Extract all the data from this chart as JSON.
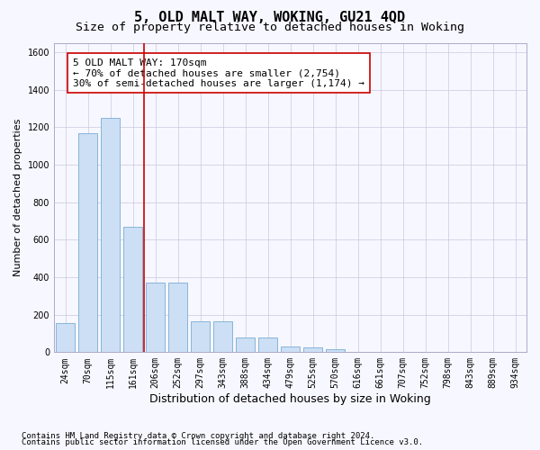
{
  "title1": "5, OLD MALT WAY, WOKING, GU21 4QD",
  "title2": "Size of property relative to detached houses in Woking",
  "xlabel": "Distribution of detached houses by size in Woking",
  "ylabel": "Number of detached properties",
  "categories": [
    "24sqm",
    "70sqm",
    "115sqm",
    "161sqm",
    "206sqm",
    "252sqm",
    "297sqm",
    "343sqm",
    "388sqm",
    "434sqm",
    "479sqm",
    "525sqm",
    "570sqm",
    "616sqm",
    "661sqm",
    "707sqm",
    "752sqm",
    "798sqm",
    "843sqm",
    "889sqm",
    "934sqm"
  ],
  "values": [
    155,
    1170,
    1250,
    670,
    370,
    370,
    165,
    165,
    80,
    80,
    30,
    25,
    18,
    0,
    0,
    0,
    0,
    0,
    0,
    0,
    0
  ],
  "bar_color": "#ccdff5",
  "bar_edge_color": "#7aadd4",
  "vline_color": "#cc0000",
  "vline_pos": 3.5,
  "ylim": [
    0,
    1650
  ],
  "yticks": [
    0,
    200,
    400,
    600,
    800,
    1000,
    1200,
    1400,
    1600
  ],
  "annotation_text": "5 OLD MALT WAY: 170sqm\n← 70% of detached houses are smaller (2,754)\n30% of semi-detached houses are larger (1,174) →",
  "annotation_box_facecolor": "#ffffff",
  "annotation_box_edgecolor": "#cc0000",
  "footnote1": "Contains HM Land Registry data © Crown copyright and database right 2024.",
  "footnote2": "Contains public sector information licensed under the Open Government Licence v3.0.",
  "background_color": "#f7f7ff",
  "grid_color": "#c8c8e0",
  "title1_fontsize": 11,
  "title2_fontsize": 9.5,
  "annotation_fontsize": 8,
  "tick_fontsize": 7,
  "xlabel_fontsize": 9,
  "ylabel_fontsize": 8,
  "footnote_fontsize": 6.5
}
